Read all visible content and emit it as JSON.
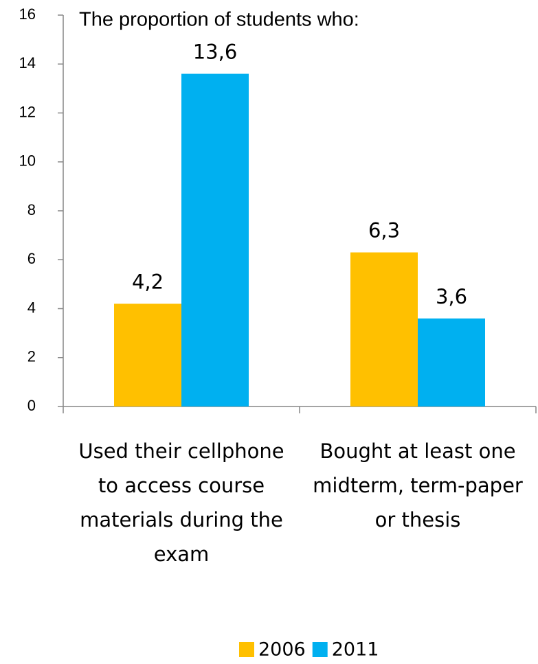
{
  "chart_data": {
    "type": "bar",
    "title": "The proportion of students who:",
    "categories": [
      "Used their cellphone to access course materials during the exam",
      "Bought at least one midterm, term-paper or thesis"
    ],
    "series": [
      {
        "name": "2006",
        "color": "#ffc000",
        "values": [
          4.2,
          6.3
        ],
        "value_labels": [
          "4,2",
          "6,3"
        ]
      },
      {
        "name": "2011",
        "color": "#00b0f0",
        "values": [
          13.6,
          3.6
        ],
        "value_labels": [
          "13,6",
          "3,6"
        ]
      }
    ],
    "ylim": [
      0,
      16
    ],
    "yticks": [
      0,
      2,
      4,
      6,
      8,
      10,
      12,
      14,
      16
    ],
    "legend": "bottom"
  }
}
